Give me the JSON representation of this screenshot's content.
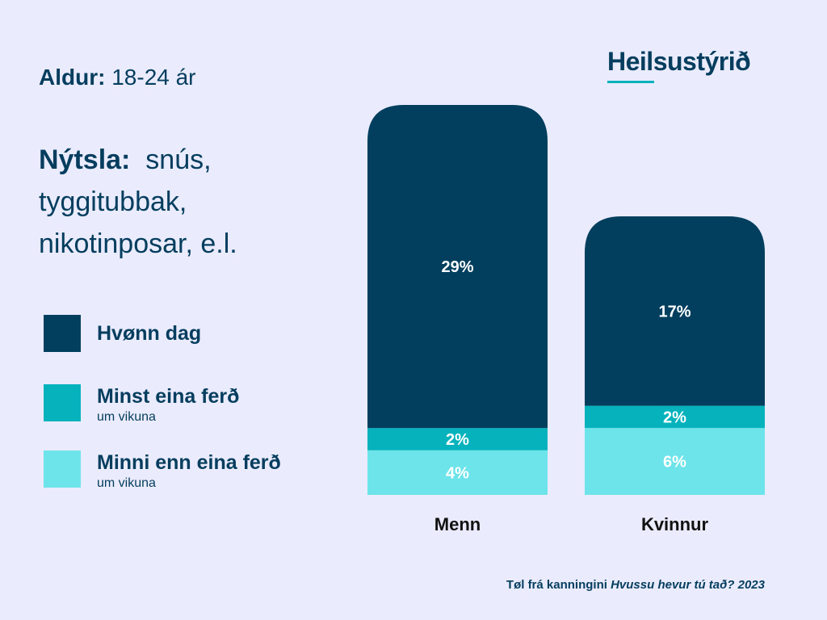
{
  "header": {
    "age_label": "Aldur:",
    "age_value": "18-24 ár",
    "usage_label": "Nýtsla:",
    "usage_value": "snús, tyggitubbak, nikotinposar, e.l."
  },
  "logo": {
    "text": "Heilsustýrið"
  },
  "footer": {
    "prefix": "Tøl frá kanningini",
    "survey": "Hvussu hevur tú tað? 2023"
  },
  "colors": {
    "background": "#eaecfd",
    "daily": "#023e5e",
    "weekly": "#06b3bd",
    "less": "#6ce4e9",
    "text": "#043d5d"
  },
  "chart_data": {
    "type": "bar",
    "stacked": true,
    "categories": [
      "Menn",
      "Kvinnur"
    ],
    "series": [
      {
        "name": "Minni enn eina ferð",
        "sub": "um vikuna",
        "color": "#6ce4e9",
        "values": [
          4,
          6
        ]
      },
      {
        "name": "Minst eina ferð",
        "sub": "um vikuna",
        "color": "#06b3bd",
        "values": [
          2,
          2
        ]
      },
      {
        "name": "Hvønn dag",
        "sub": "",
        "color": "#023e5e",
        "values": [
          29,
          17
        ]
      }
    ],
    "unit": "%",
    "legend": "left"
  }
}
